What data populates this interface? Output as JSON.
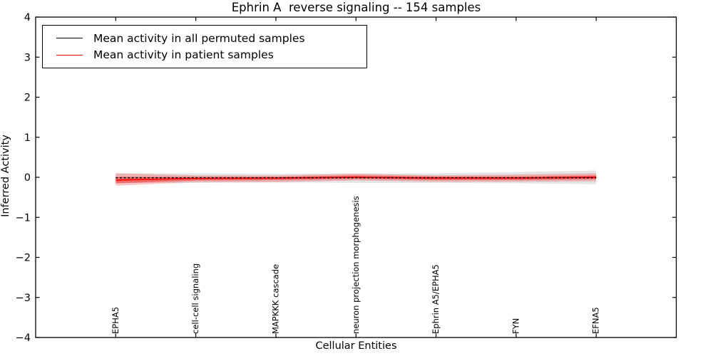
{
  "chart_data": {
    "type": "line",
    "title": "Ephrin A  reverse signaling -- 154 samples",
    "xlabel": "Cellular Entities",
    "ylabel": "Inferred Activity",
    "ylim": [
      -4,
      4
    ],
    "yticks": [
      4,
      3,
      2,
      1,
      0,
      -1,
      -2,
      -3,
      -4
    ],
    "categories": [
      "EPHA5",
      "cell-cell signaling",
      "MAPKKK cascade",
      "neuron projection morphogenesis",
      "Ephrin A5/EPHA5",
      "FYN",
      "EFNA5"
    ],
    "series": [
      {
        "name": "Mean activity in all permuted samples",
        "color": "#000000",
        "style": "dashed",
        "values": [
          -0.01,
          -0.01,
          -0.01,
          -0.01,
          -0.01,
          -0.01,
          -0.01
        ]
      },
      {
        "name": "Mean activity in patient samples",
        "color": "#ff0000",
        "style": "solid",
        "values": [
          -0.07,
          -0.03,
          -0.02,
          0.0,
          -0.02,
          -0.02,
          0.0
        ]
      }
    ],
    "bands": [
      {
        "name": "permuted-std-band",
        "color": "#000000",
        "opacity": 0.1,
        "upper": [
          0.1,
          0.1,
          0.09,
          0.1,
          0.1,
          0.13,
          0.17
        ],
        "lower": [
          -0.14,
          -0.14,
          -0.13,
          -0.14,
          -0.14,
          -0.15,
          -0.17
        ]
      },
      {
        "name": "patient-outer-band",
        "color": "#ff0000",
        "opacity": 0.22,
        "upper": [
          0.1,
          0.05,
          0.05,
          0.09,
          0.05,
          0.07,
          0.1
        ],
        "lower": [
          -0.21,
          -0.12,
          -0.12,
          -0.08,
          -0.11,
          -0.11,
          -0.1
        ]
      },
      {
        "name": "patient-inner-band",
        "color": "#ff0000",
        "opacity": 0.4,
        "upper": [
          0.01,
          0.01,
          0.01,
          0.05,
          0.02,
          0.02,
          0.05
        ],
        "lower": [
          -0.15,
          -0.08,
          -0.07,
          -0.04,
          -0.07,
          -0.07,
          -0.05
        ]
      }
    ],
    "legend": {
      "position": "upper left"
    },
    "grid": false
  }
}
